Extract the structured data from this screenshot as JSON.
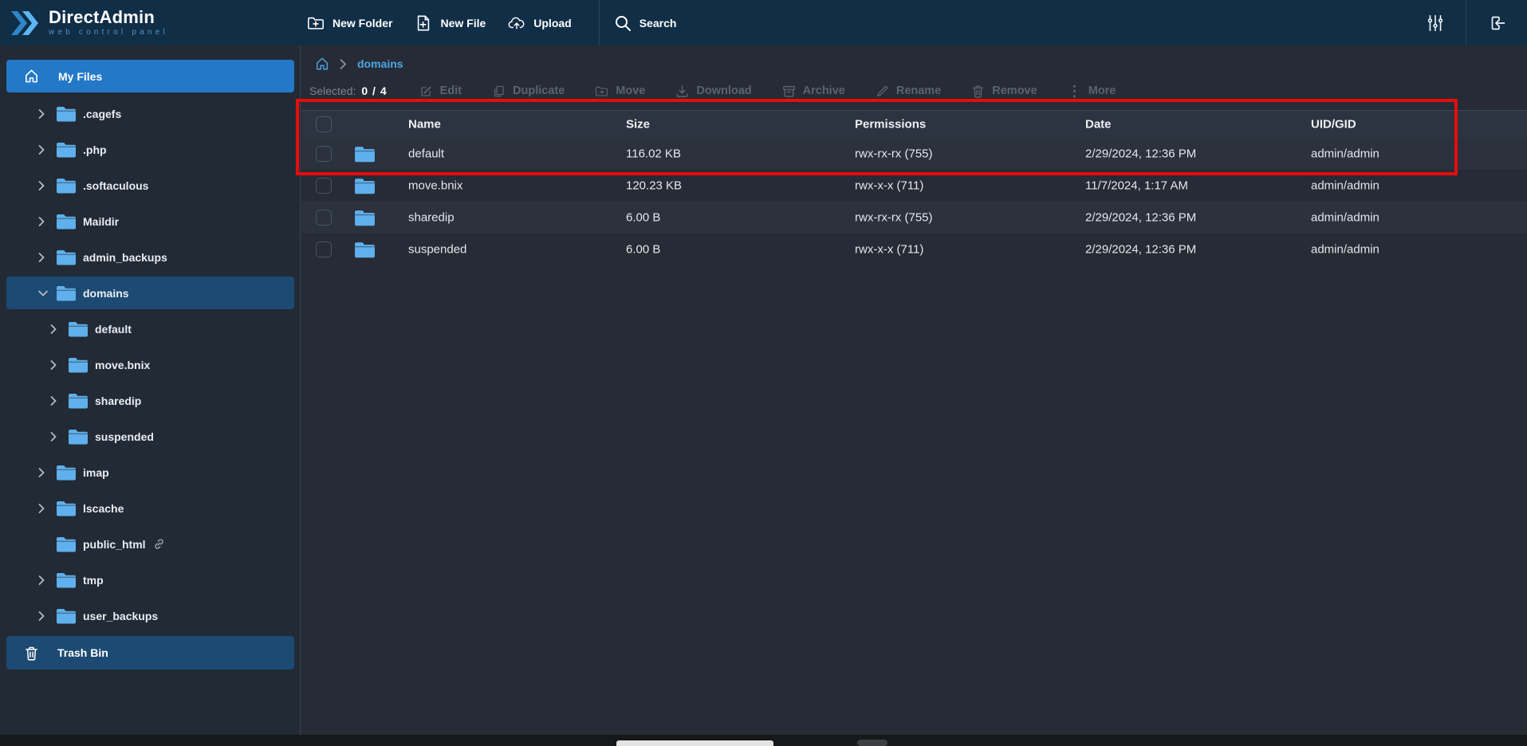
{
  "topbar": {
    "logo": {
      "title": "DirectAdmin",
      "subtitle": "web control panel"
    },
    "actions": [
      {
        "id": "new-folder",
        "label": "New Folder",
        "icon": "folder-plus"
      },
      {
        "id": "new-file",
        "label": "New File",
        "icon": "file-plus"
      },
      {
        "id": "upload",
        "label": "Upload",
        "icon": "cloud-upload"
      }
    ],
    "search_label": "Search",
    "right_icons": [
      "sliders",
      "logout"
    ]
  },
  "sidebar": {
    "my_files_label": "My Files",
    "items": [
      {
        "label": ".cagefs",
        "level": 0,
        "chevron": "right",
        "selected": false,
        "link": false
      },
      {
        "label": ".php",
        "level": 0,
        "chevron": "right",
        "selected": false,
        "link": false
      },
      {
        "label": ".softaculous",
        "level": 0,
        "chevron": "right",
        "selected": false,
        "link": false
      },
      {
        "label": "Maildir",
        "level": 0,
        "chevron": "right",
        "selected": false,
        "link": false
      },
      {
        "label": "admin_backups",
        "level": 0,
        "chevron": "right",
        "selected": false,
        "link": false
      },
      {
        "label": "domains",
        "level": 0,
        "chevron": "down",
        "selected": true,
        "link": false
      },
      {
        "label": "default",
        "level": 1,
        "chevron": "right",
        "selected": false,
        "link": false
      },
      {
        "label": "move.bnix",
        "level": 1,
        "chevron": "right",
        "selected": false,
        "link": false
      },
      {
        "label": "sharedip",
        "level": 1,
        "chevron": "right",
        "selected": false,
        "link": false
      },
      {
        "label": "suspended",
        "level": 1,
        "chevron": "right",
        "selected": false,
        "link": false
      },
      {
        "label": "imap",
        "level": 0,
        "chevron": "right",
        "selected": false,
        "link": false
      },
      {
        "label": "lscache",
        "level": 0,
        "chevron": "right",
        "selected": false,
        "link": false
      },
      {
        "label": "public_html",
        "level": 0,
        "chevron": null,
        "selected": false,
        "link": true
      },
      {
        "label": "tmp",
        "level": 0,
        "chevron": "right",
        "selected": false,
        "link": false
      },
      {
        "label": "user_backups",
        "level": 0,
        "chevron": "right",
        "selected": false,
        "link": false
      }
    ],
    "trash_label": "Trash Bin"
  },
  "breadcrumb": {
    "current": "domains"
  },
  "action_bar": {
    "selected_label": "Selected:",
    "selected_count": "0 / 4",
    "actions": [
      {
        "id": "edit",
        "label": "Edit",
        "icon": "edit"
      },
      {
        "id": "duplicate",
        "label": "Duplicate",
        "icon": "copy"
      },
      {
        "id": "move",
        "label": "Move",
        "icon": "folder-move"
      },
      {
        "id": "download",
        "label": "Download",
        "icon": "download"
      },
      {
        "id": "archive",
        "label": "Archive",
        "icon": "archive"
      },
      {
        "id": "rename",
        "label": "Rename",
        "icon": "pen"
      },
      {
        "id": "remove",
        "label": "Remove",
        "icon": "trash"
      },
      {
        "id": "more",
        "label": "More",
        "icon": "kebab"
      }
    ]
  },
  "table": {
    "columns": [
      "Name",
      "Size",
      "Permissions",
      "Date",
      "UID/GID"
    ],
    "rows": [
      {
        "name": "default",
        "size": "116.02 KB",
        "permissions": "rwx-rx-rx (755)",
        "date": "2/29/2024, 12:36 PM",
        "uid_gid": "admin/admin"
      },
      {
        "name": "move.bnix",
        "size": "120.23 KB",
        "permissions": "rwx-x-x (711)",
        "date": "11/7/2024, 1:17 AM",
        "uid_gid": "admin/admin"
      },
      {
        "name": "sharedip",
        "size": "6.00 B",
        "permissions": "rwx-rx-rx (755)",
        "date": "2/29/2024, 12:36 PM",
        "uid_gid": "admin/admin"
      },
      {
        "name": "suspended",
        "size": "6.00 B",
        "permissions": "rwx-x-x (711)",
        "date": "2/29/2024, 12:36 PM",
        "uid_gid": "admin/admin"
      }
    ]
  },
  "colors": {
    "topbar_bg": "#112e47",
    "sidebar_bg": "#222a35",
    "content_bg": "#262b35",
    "accent_blue": "#2478c8",
    "selected_item_bg": "#1c4a73",
    "folder_icon": "#5fb0ec",
    "breadcrumb_link": "#4da5e6",
    "disabled_action_text": "#5a6370",
    "annotation_red": "#e50d0d"
  }
}
